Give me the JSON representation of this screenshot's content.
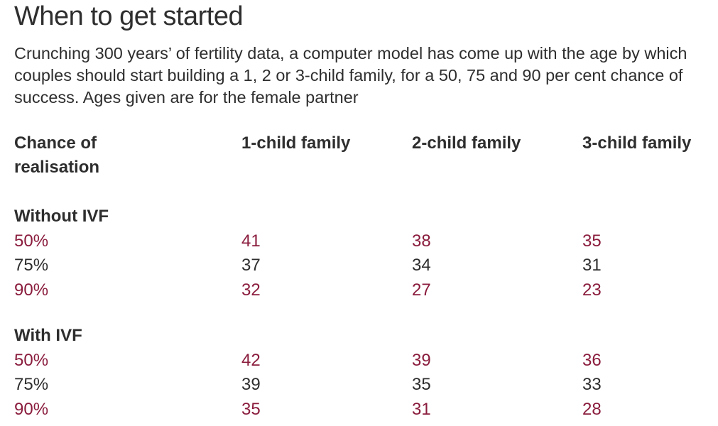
{
  "title": "When to get started",
  "subtitle": "Crunching 300 years’ of fertility data, a computer model has come up with the age by which couples should start building a 1, 2 or 3-child family, for a 50, 75 and 90 per cent chance of success. Ages given are for the female partner",
  "colors": {
    "accent": "#8a1c3d",
    "text": "#2e2e2e"
  },
  "chart_data": {
    "type": "table",
    "columns": [
      "Chance of realisation",
      "1-child family",
      "2-child family",
      "3-child family"
    ],
    "sections": [
      {
        "name": "Without IVF",
        "rows": [
          {
            "chance": "50%",
            "values": [
              41,
              38,
              35
            ]
          },
          {
            "chance": "75%",
            "values": [
              37,
              34,
              31
            ]
          },
          {
            "chance": "90%",
            "values": [
              32,
              27,
              23
            ]
          }
        ]
      },
      {
        "name": "With IVF",
        "rows": [
          {
            "chance": "50%",
            "values": [
              42,
              39,
              36
            ]
          },
          {
            "chance": "75%",
            "values": [
              39,
              35,
              33
            ]
          },
          {
            "chance": "90%",
            "values": [
              35,
              31,
              28
            ]
          }
        ]
      }
    ]
  }
}
